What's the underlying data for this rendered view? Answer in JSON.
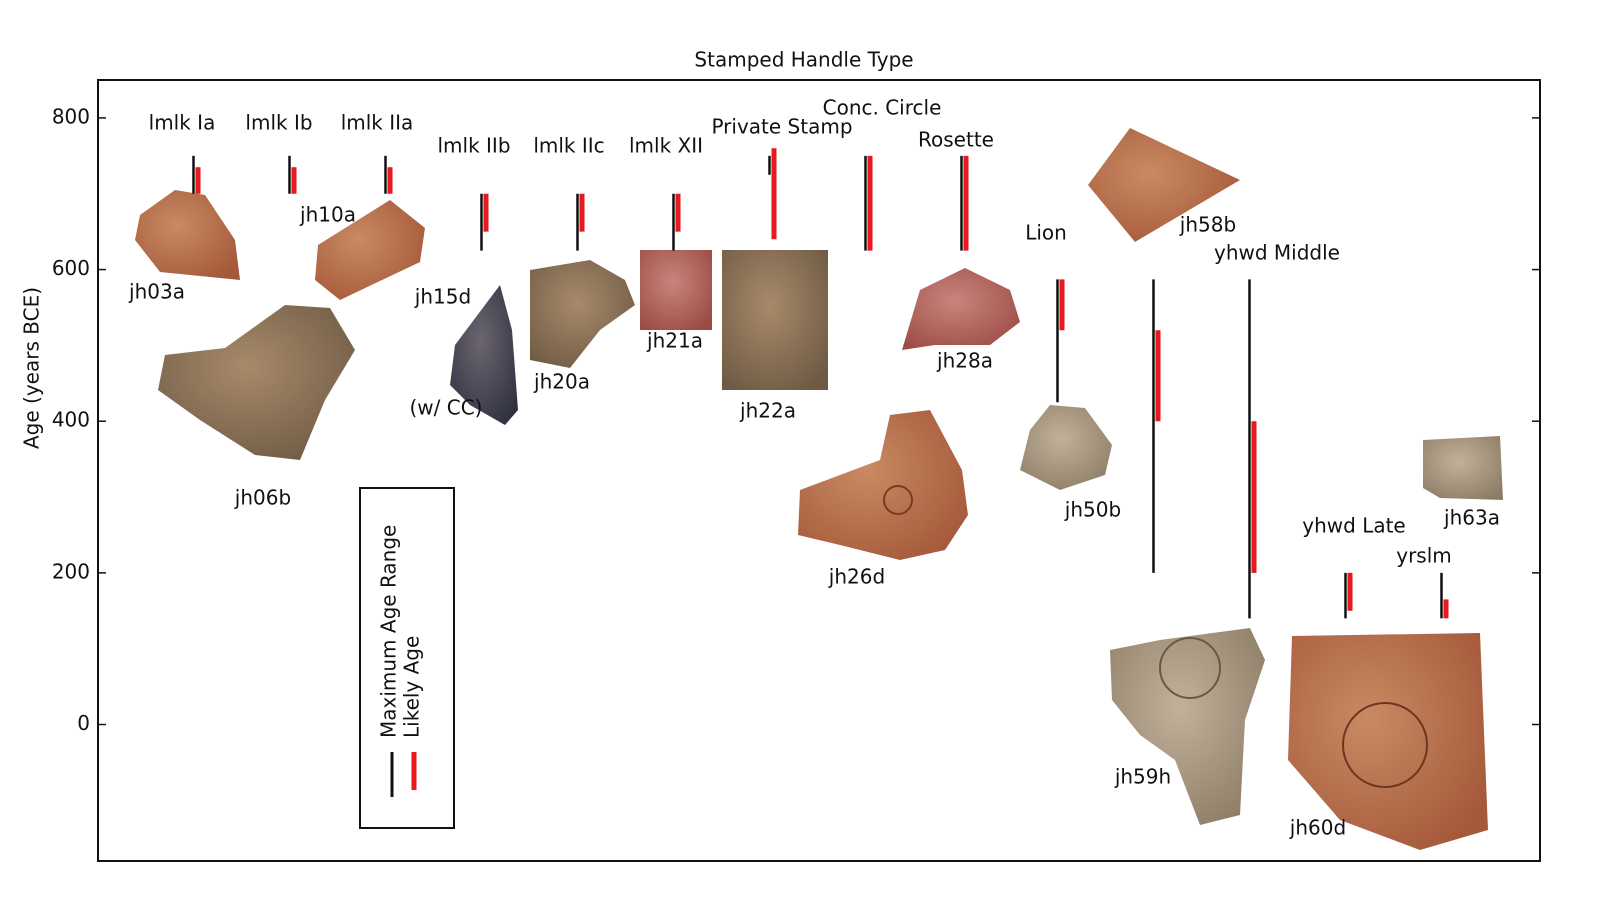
{
  "chart_data": {
    "type": "range",
    "title": "Stamped Handle Type",
    "ylabel": "Age (years BCE)",
    "categories": [
      "lmlk Ia",
      "lmlk Ib",
      "lmlk IIa",
      "lmlk IIb",
      "lmlk IIc",
      "lmlk XII",
      "Private Stamp",
      "Conc. Circle",
      "Rosette",
      "Lion",
      null,
      "yhwd Middle",
      "yhwd Late",
      "yrslm"
    ],
    "series": [
      {
        "name": "Maximum Age Range",
        "color": "#111111",
        "values": [
          [
            700,
            750
          ],
          [
            700,
            750
          ],
          [
            700,
            750
          ],
          [
            625,
            700
          ],
          [
            625,
            700
          ],
          [
            625,
            700
          ],
          [
            725,
            750
          ],
          [
            625,
            750
          ],
          [
            625,
            750
          ],
          [
            425,
            587
          ],
          [
            200,
            587
          ],
          [
            140,
            587
          ],
          [
            140,
            200
          ],
          [
            140,
            200
          ]
        ]
      },
      {
        "name": "Likely Age",
        "color": "#e8191c",
        "values": [
          [
            700,
            735
          ],
          [
            700,
            735
          ],
          [
            700,
            735
          ],
          [
            650,
            700
          ],
          [
            650,
            700
          ],
          [
            650,
            700
          ],
          [
            640,
            760
          ],
          [
            625,
            750
          ],
          [
            625,
            750
          ],
          [
            520,
            587
          ],
          [
            400,
            520
          ],
          [
            200,
            400
          ],
          [
            150,
            200
          ],
          [
            140,
            165
          ]
        ]
      }
    ],
    "annotations": [
      "jh03a",
      "jh10a",
      "jh06b",
      "jh15d",
      "(w/ CC)",
      "jh20a",
      "jh21a",
      "jh22a",
      "jh28a",
      "jh26d",
      "jh50b",
      "jh58b",
      "jh63a",
      "jh59h",
      "jh60d"
    ],
    "ylim": [
      -180,
      850
    ],
    "yticks": [
      0,
      200,
      400,
      600,
      800
    ],
    "grid": false
  }
}
